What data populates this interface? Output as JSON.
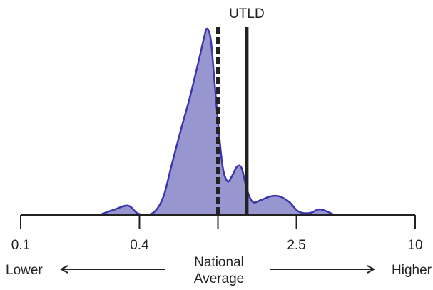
{
  "colors": {
    "fill": "#9896cf",
    "stroke": "#3b35b0",
    "line": "#222222"
  },
  "chart_data": {
    "type": "area",
    "scale": "log",
    "xlim": [
      0.1,
      10
    ],
    "ticks": [
      {
        "value": 0.1,
        "label": "0.1"
      },
      {
        "value": 0.4,
        "label": "0.4"
      },
      {
        "value": 1.0,
        "label": ""
      },
      {
        "value": 2.5,
        "label": "2.5"
      },
      {
        "value": 10,
        "label": "10"
      }
    ],
    "density": [
      [
        0.25,
        0.0
      ],
      [
        0.3,
        0.03
      ],
      [
        0.35,
        0.05
      ],
      [
        0.39,
        0.01
      ],
      [
        0.43,
        0.0
      ],
      [
        0.48,
        0.02
      ],
      [
        0.53,
        0.1
      ],
      [
        0.58,
        0.26
      ],
      [
        0.65,
        0.46
      ],
      [
        0.72,
        0.63
      ],
      [
        0.8,
        0.83
      ],
      [
        0.85,
        0.95
      ],
      [
        0.88,
        1.0
      ],
      [
        0.92,
        0.94
      ],
      [
        0.96,
        0.72
      ],
      [
        1.01,
        0.45
      ],
      [
        1.06,
        0.25
      ],
      [
        1.12,
        0.18
      ],
      [
        1.18,
        0.21
      ],
      [
        1.25,
        0.26
      ],
      [
        1.32,
        0.25
      ],
      [
        1.4,
        0.14
      ],
      [
        1.5,
        0.07
      ],
      [
        1.65,
        0.08
      ],
      [
        1.85,
        0.1
      ],
      [
        2.05,
        0.1
      ],
      [
        2.3,
        0.07
      ],
      [
        2.55,
        0.02
      ],
      [
        2.9,
        0.01
      ],
      [
        3.25,
        0.03
      ],
      [
        3.55,
        0.02
      ],
      [
        3.9,
        0.0
      ]
    ],
    "reference_lines": [
      {
        "x": 1.0,
        "style": "dashed",
        "label": ""
      },
      {
        "x": 1.4,
        "style": "solid",
        "label": "UTLD"
      }
    ],
    "direction_labels": {
      "left": "Lower",
      "center": [
        "National",
        "Average"
      ],
      "right": "Higher"
    }
  }
}
